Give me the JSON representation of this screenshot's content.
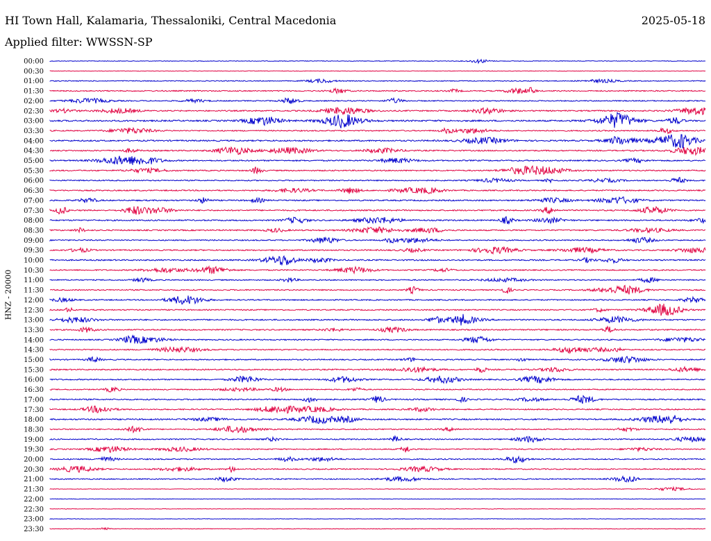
{
  "header": {
    "station": "HI Town Hall, Kalamaria, Thessaloniki, Central Macedonia",
    "date": "2025-05-18",
    "filter": "Applied filter: WWSSN-SP"
  },
  "chart_data": {
    "type": "line",
    "title": "HI Town Hall, Kalamaria, Thessaloniki, Central Macedonia",
    "ylabel": "HNZ - 20000",
    "rows": [
      "00:00",
      "00:30",
      "01:00",
      "01:30",
      "02:00",
      "02:30",
      "03:00",
      "03:30",
      "04:00",
      "04:30",
      "05:00",
      "05:30",
      "06:00",
      "06:30",
      "07:00",
      "07:30",
      "08:00",
      "08:30",
      "09:00",
      "09:30",
      "10:00",
      "10:30",
      "11:00",
      "11:30",
      "12:00",
      "12:30",
      "13:00",
      "13:30",
      "14:00",
      "14:30",
      "15:00",
      "15:30",
      "16:00",
      "16:30",
      "17:00",
      "17:30",
      "18:00",
      "18:30",
      "19:00",
      "19:30",
      "20:00",
      "20:30",
      "21:00",
      "21:30",
      "22:00",
      "22:30",
      "23:00",
      "23:30"
    ],
    "colors": [
      "#0000cc",
      "#e00040"
    ],
    "activity": [
      0.15,
      0.05,
      0.3,
      0.5,
      0.45,
      0.6,
      0.8,
      0.5,
      0.7,
      0.6,
      0.6,
      0.55,
      0.5,
      0.55,
      0.6,
      0.6,
      0.6,
      0.6,
      0.5,
      0.6,
      0.6,
      0.5,
      0.5,
      0.5,
      0.5,
      0.5,
      0.6,
      0.55,
      0.5,
      0.5,
      0.5,
      0.55,
      0.55,
      0.45,
      0.6,
      0.55,
      0.65,
      0.5,
      0.5,
      0.5,
      0.5,
      0.5,
      0.45,
      0.1,
      0.05,
      0.05,
      0.05,
      0.1
    ]
  }
}
